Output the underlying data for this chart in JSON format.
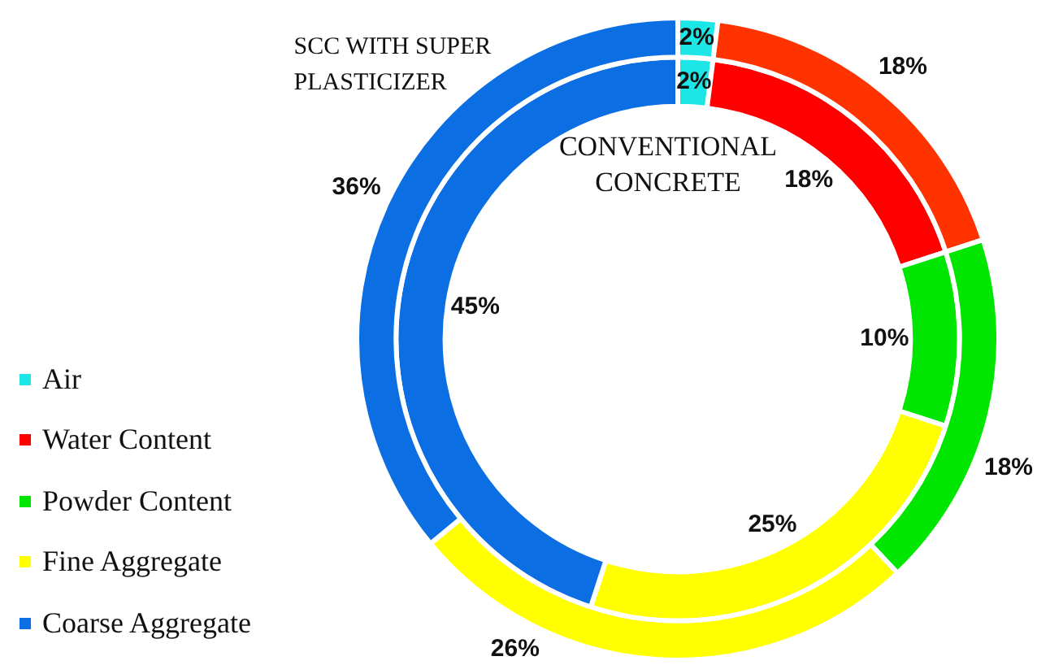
{
  "chart_data": {
    "type": "donut",
    "categories": [
      "Air",
      "Water Content",
      "Powder Content",
      "Fine Aggregate",
      "Coarse Aggregate"
    ],
    "series": [
      {
        "name": "SCC WITH SUPER PLASTICIZER",
        "values": [
          2,
          18,
          18,
          26,
          36
        ],
        "colors": [
          "#1de6e6",
          "#ff3300",
          "#00e600",
          "#ffff00",
          "#0b6fe3"
        ],
        "value_labels": [
          "2%",
          "18%",
          "18%",
          "26%",
          "36%"
        ]
      },
      {
        "name": "CONVENTIONAL CONCRETE",
        "values": [
          2,
          18,
          10,
          25,
          45
        ],
        "colors": [
          "#1de6e6",
          "#ff0000",
          "#00e600",
          "#ffff00",
          "#0b6fe3"
        ],
        "value_labels": [
          "2%",
          "18%",
          "10%",
          "25%",
          "45%"
        ]
      }
    ],
    "legend": "bottom left"
  }
}
